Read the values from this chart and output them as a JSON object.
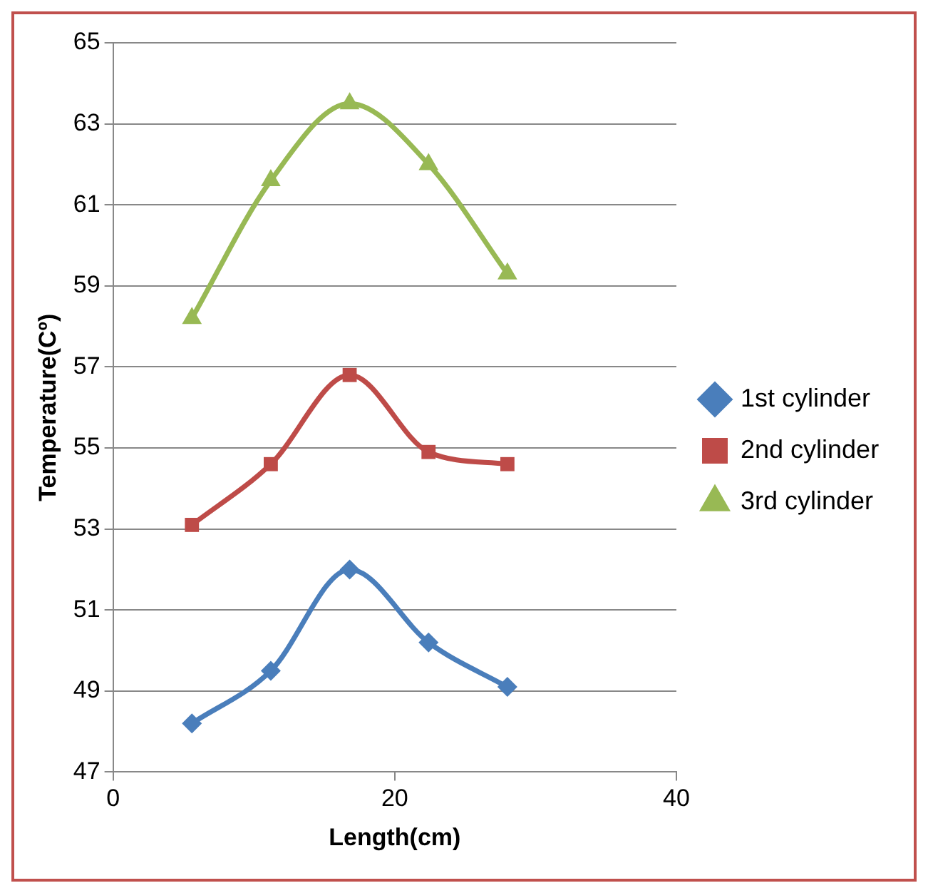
{
  "chart_data": {
    "type": "line",
    "xlabel": "Length(cm)",
    "ylabel": "Temperature(Cº)",
    "xlim": [
      0,
      40
    ],
    "xticks": [
      0,
      20,
      40
    ],
    "ylim": [
      47,
      65
    ],
    "yticks": [
      47,
      49,
      51,
      53,
      55,
      57,
      59,
      61,
      63,
      65
    ],
    "grid": "y",
    "legend": "right",
    "series": [
      {
        "name": "1st cylinder",
        "color": "#4a7ebb",
        "marker": "diamond",
        "x": [
          5.6,
          11.2,
          16.8,
          22.4,
          28
        ],
        "values": [
          48.2,
          49.5,
          52.0,
          50.2,
          49.1
        ]
      },
      {
        "name": "2nd cylinder",
        "color": "#be4b48",
        "marker": "square",
        "x": [
          5.6,
          11.2,
          16.8,
          22.4,
          28
        ],
        "values": [
          53.1,
          54.6,
          56.8,
          54.9,
          54.6
        ]
      },
      {
        "name": "3rd cylinder",
        "color": "#98b954",
        "marker": "triangle",
        "x": [
          5.6,
          11.2,
          16.8,
          22.4,
          28
        ],
        "values": [
          58.2,
          61.6,
          63.5,
          62.0,
          59.3
        ]
      }
    ]
  }
}
